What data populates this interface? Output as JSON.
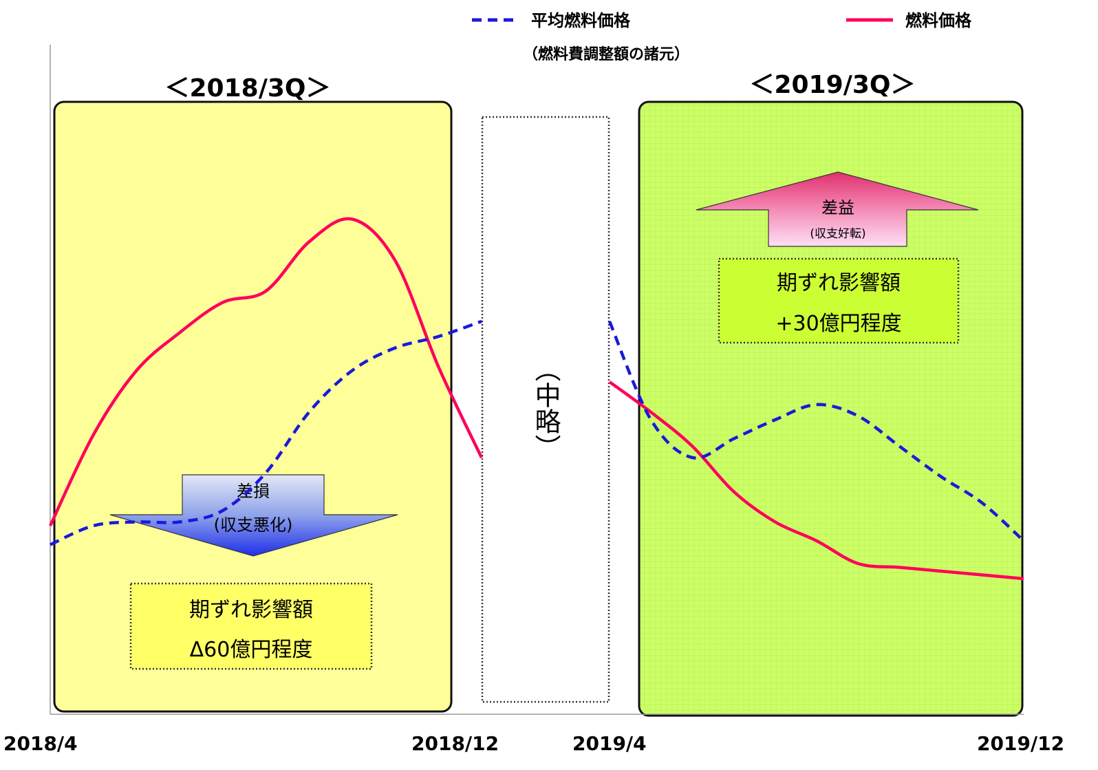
{
  "legend": {
    "avg_label": "平均燃料価格",
    "avg_sub": "（燃料費調整額の諸元）",
    "fuel_label": "燃料価格"
  },
  "colors": {
    "avg_line": "#1a1adb",
    "fuel_line": "#ff005a",
    "panel_left": "#ffff99",
    "panel_right": "#ccff66"
  },
  "periods": {
    "left": "＜2018/3Q＞",
    "right": "＜2019/3Q＞",
    "omitted": "（中略）"
  },
  "loss": {
    "label": "差損",
    "sub": "(収支悪化)",
    "box_line1": "期ずれ影響額",
    "box_line2": "Δ60億円程度"
  },
  "gain": {
    "label": "差益",
    "sub": "(収支好転)",
    "box_line1": "期ずれ影響額",
    "box_line2": "+30億円程度"
  },
  "x_ticks": [
    "2018/4",
    "2018/12",
    "2019/4",
    "2019/12"
  ],
  "chart_data": {
    "type": "line",
    "title": "",
    "xlabel": "",
    "ylabel": "",
    "segments": [
      {
        "period": "2018/4–2018/12",
        "x": [
          0,
          0.1,
          0.2,
          0.3,
          0.4,
          0.5,
          0.6,
          0.7,
          0.8,
          0.9,
          1.0
        ],
        "series": [
          {
            "name": "燃料価格",
            "values": [
              0.12,
              0.36,
              0.53,
              0.63,
              0.71,
              0.74,
              0.87,
              0.93,
              0.82,
              0.54,
              0.3
            ]
          },
          {
            "name": "平均燃料価格",
            "values": [
              0.07,
              0.12,
              0.13,
              0.13,
              0.16,
              0.26,
              0.42,
              0.53,
              0.59,
              0.62,
              0.66
            ]
          }
        ]
      },
      {
        "period": "2019/4–2019/12",
        "x": [
          0,
          0.1,
          0.2,
          0.3,
          0.4,
          0.5,
          0.6,
          0.7,
          0.8,
          0.9,
          1.0
        ],
        "series": [
          {
            "name": "燃料価格",
            "values": [
              0.5,
              0.42,
              0.33,
              0.21,
              0.13,
              0.08,
              0.02,
              0.01,
              0.0,
              -0.01,
              -0.02
            ]
          },
          {
            "name": "平均燃料価格",
            "values": [
              0.66,
              0.4,
              0.3,
              0.35,
              0.4,
              0.44,
              0.41,
              0.33,
              0.25,
              0.18,
              0.08
            ]
          }
        ]
      }
    ]
  }
}
